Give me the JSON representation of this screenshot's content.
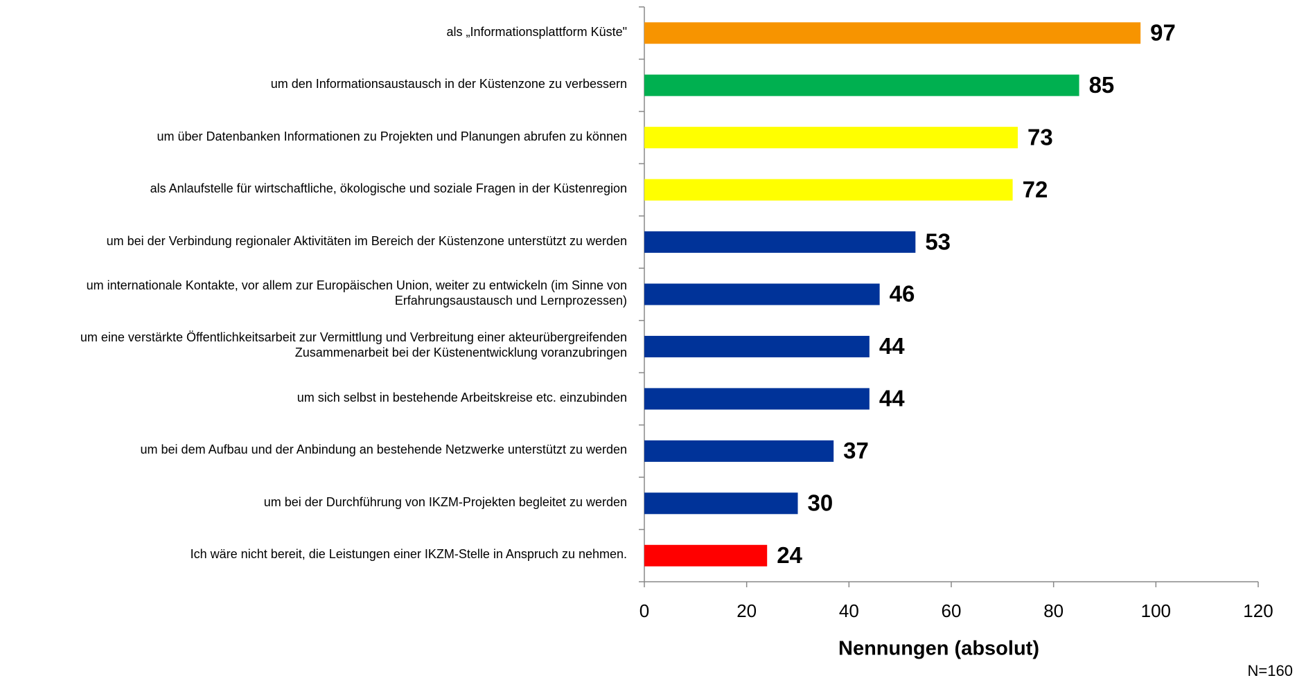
{
  "chart_data": {
    "type": "bar",
    "orientation": "horizontal",
    "categories": [
      "als „Informationsplattform Küste\"",
      "um den Informationsaustausch in der Küstenzone zu verbessern",
      "um über Datenbanken Informationen zu Projekten und Planungen abrufen zu können",
      "als Anlaufstelle für wirtschaftliche, ökologische und soziale Fragen in der Küstenregion",
      "um bei der Verbindung regionaler Aktivitäten im Bereich der Küstenzone unterstützt zu werden",
      "um internationale Kontakte, vor allem zur Europäischen Union, weiter zu entwickeln (im Sinne von Erfahrungsaustausch und Lernprozessen)",
      "um eine verstärkte Öffentlichkeitsarbeit zur Vermittlung und Verbreitung einer akteurübergreifenden Zusammenarbeit bei der Küstenentwicklung voranzubringen",
      "um sich selbst in bestehende Arbeitskreise etc. einzubinden",
      "um bei dem Aufbau und der Anbindung an bestehende Netzwerke unterstützt zu werden",
      "um bei der Durchführung von IKZM-Projekten begleitet zu werden",
      "Ich wäre nicht bereit, die Leistungen einer IKZM-Stelle in Anspruch zu nehmen."
    ],
    "values": [
      97,
      85,
      73,
      72,
      53,
      46,
      44,
      44,
      37,
      30,
      24
    ],
    "colors": [
      "#f79400",
      "#00b050",
      "#ffff00",
      "#ffff00",
      "#003399",
      "#003399",
      "#003399",
      "#003399",
      "#003399",
      "#003399",
      "#ff0000"
    ],
    "xlabel": "Nennungen (absolut)",
    "note": "N=160",
    "xlim": [
      0,
      120
    ],
    "xticks": [
      0,
      20,
      40,
      60,
      80,
      100,
      120
    ]
  }
}
